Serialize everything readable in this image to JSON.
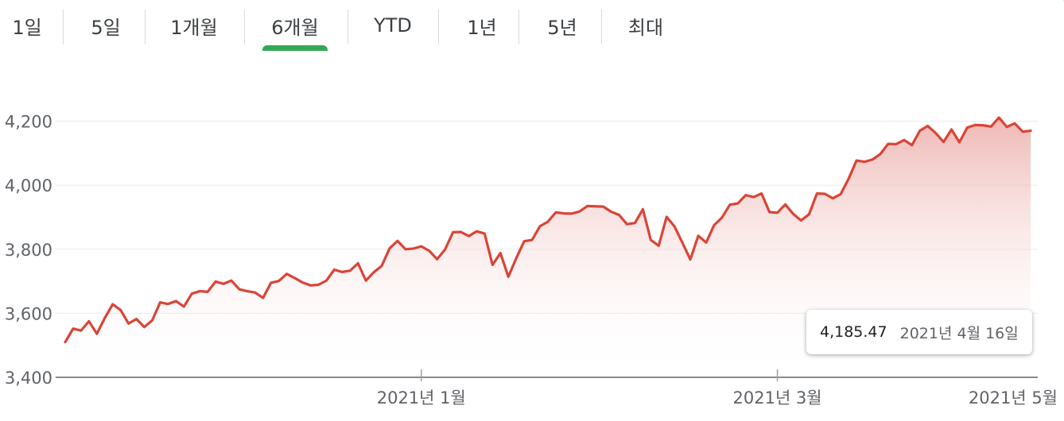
{
  "tabs": [
    {
      "label": "1일",
      "active": false
    },
    {
      "label": "5일",
      "active": false
    },
    {
      "label": "1개월",
      "active": false
    },
    {
      "label": "6개월",
      "active": true
    },
    {
      "label": "YTD",
      "active": false
    },
    {
      "label": "1년",
      "active": false
    },
    {
      "label": "5년",
      "active": false
    },
    {
      "label": "최대",
      "active": false
    }
  ],
  "colors": {
    "line": "#db4437",
    "fill_top": "#e5928c",
    "active_tab": "#34a853",
    "grid": "#ececec"
  },
  "tooltip": {
    "value": "4,185.47",
    "date": "2021년 4월 16일"
  },
  "chart_data": {
    "type": "area",
    "title": "",
    "xlabel": "",
    "ylabel": "",
    "ylim": [
      3400,
      4250
    ],
    "yticks": [
      3400,
      3600,
      3800,
      4000,
      4200
    ],
    "ytick_labels": [
      "3,400",
      "3,600",
      "3,800",
      "4,000",
      "4,200"
    ],
    "xticks": [
      {
        "label": "2021년 1월",
        "index": 45
      },
      {
        "label": "2021년 3월",
        "index": 90
      },
      {
        "label": "2021년 5월",
        "index": 140
      }
    ],
    "grid": true,
    "highlight_index": 127,
    "series": [
      {
        "values": [
          3510,
          3552,
          3546,
          3575,
          3536,
          3585,
          3628,
          3610,
          3568,
          3582,
          3557,
          3578,
          3634,
          3629,
          3638,
          3621,
          3661,
          3669,
          3667,
          3699,
          3692,
          3702,
          3675,
          3669,
          3665,
          3648,
          3695,
          3701,
          3723,
          3710,
          3696,
          3687,
          3689,
          3702,
          3736,
          3729,
          3733,
          3756,
          3702,
          3728,
          3748,
          3803,
          3826,
          3800,
          3802,
          3809,
          3795,
          3769,
          3799,
          3853,
          3854,
          3841,
          3856,
          3849,
          3751,
          3788,
          3714,
          3772,
          3825,
          3829,
          3872,
          3886,
          3915,
          3912,
          3911,
          3918,
          3935,
          3934,
          3933,
          3917,
          3907,
          3878,
          3882,
          3925,
          3829,
          3811,
          3901,
          3871,
          3820,
          3768,
          3842,
          3821,
          3875,
          3899,
          3939,
          3943,
          3969,
          3963,
          3974,
          3916,
          3914,
          3940,
          3910,
          3890,
          3909,
          3974,
          3973,
          3959,
          3972,
          4020,
          4077,
          4073,
          4080,
          4097,
          4129,
          4128,
          4141,
          4125,
          4170,
          4185,
          4163,
          4135,
          4174,
          4134,
          4180,
          4188,
          4187,
          4183,
          4211,
          4182,
          4193,
          4167,
          4170
        ]
      }
    ]
  }
}
